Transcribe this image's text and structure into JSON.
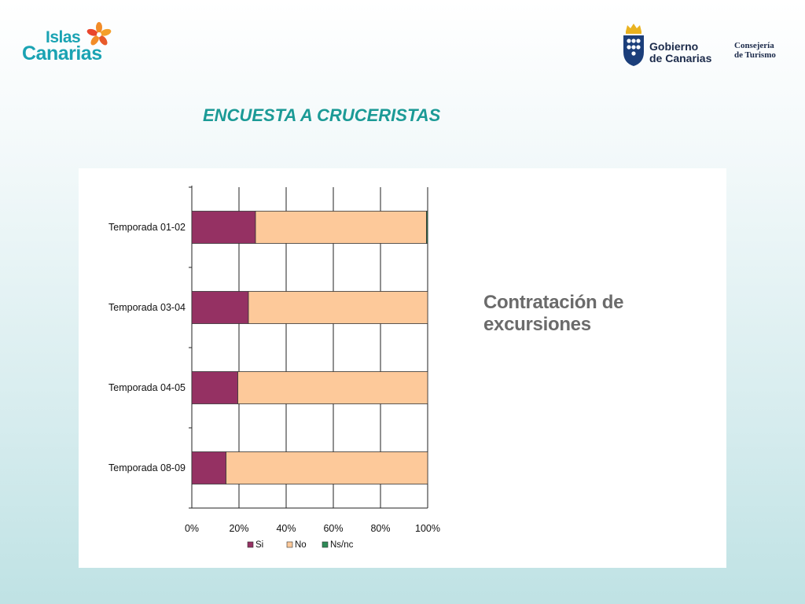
{
  "logo_left": {
    "line1": "Islas",
    "line2": "Canarias"
  },
  "logo_right": {
    "line1": "Gobierno",
    "line2": "de Canarias",
    "line3": "Consejería",
    "line4": "de Turismo"
  },
  "page_title": "ENCUESTA A CRUCERISTAS",
  "chart_data": {
    "type": "bar",
    "orientation": "horizontal",
    "stacked": "percent",
    "title": "Contratación de excursiones",
    "categories": [
      "Temporada 01-02",
      "Temporada 03-04",
      "Temporada 04-05",
      "Temporada 08-09"
    ],
    "series": [
      {
        "name": "Si",
        "values": [
          27,
          24,
          19.5,
          14.5
        ],
        "color": "#953163"
      },
      {
        "name": "No",
        "values": [
          72.5,
          76,
          80.5,
          85.5
        ],
        "color": "#fdc99a"
      },
      {
        "name": "Ns/nc",
        "values": [
          0.5,
          0,
          0,
          0
        ],
        "color": "#2e8b57"
      }
    ],
    "xlim": [
      0,
      100
    ],
    "xticks": [
      "0%",
      "20%",
      "40%",
      "60%",
      "80%",
      "100%"
    ],
    "grid": true,
    "legend": "bottom"
  }
}
